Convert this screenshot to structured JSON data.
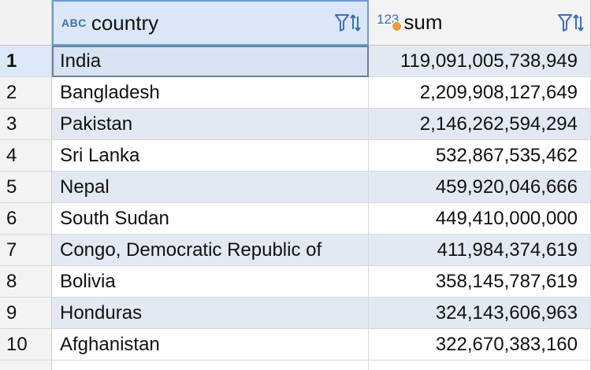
{
  "columns": [
    {
      "type_badge": "ABC",
      "label": "country"
    },
    {
      "type_badge": "123",
      "label": "sum"
    }
  ],
  "rows": [
    {
      "num": "1",
      "country": "India",
      "sum": "119,091,005,738,949"
    },
    {
      "num": "2",
      "country": "Bangladesh",
      "sum": "2,209,908,127,649"
    },
    {
      "num": "3",
      "country": "Pakistan",
      "sum": "2,146,262,594,294"
    },
    {
      "num": "4",
      "country": "Sri Lanka",
      "sum": "532,867,535,462"
    },
    {
      "num": "5",
      "country": "Nepal",
      "sum": "459,920,046,666"
    },
    {
      "num": "6",
      "country": "South Sudan",
      "sum": "449,410,000,000"
    },
    {
      "num": "7",
      "country": "Congo, Democratic Republic of",
      "sum": "411,984,374,619"
    },
    {
      "num": "8",
      "country": "Bolivia",
      "sum": "358,145,787,619"
    },
    {
      "num": "9",
      "country": "Honduras",
      "sum": "324,143,606,963"
    },
    {
      "num": "10",
      "country": "Afghanistan",
      "sum": "322,670,383,160"
    }
  ],
  "colors": {
    "accent": "#3d6fb5",
    "row_alt": "#e3e9f2",
    "header_selected": "#dbe7f8",
    "number_dot": "#e89a3c"
  },
  "icons": {
    "filter_sort": "filter-sort-icon"
  }
}
